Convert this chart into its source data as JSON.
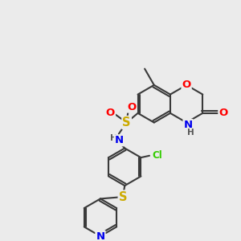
{
  "bg_color": "#ebebeb",
  "bond_color": "#3a3a3a",
  "bond_width": 1.5,
  "atom_colors": {
    "O": "#ff0000",
    "N": "#0000ee",
    "S": "#ccaa00",
    "Cl": "#33cc00",
    "C": "#3a3a3a",
    "H": "#555555"
  },
  "font_size": 8.5,
  "fig_size": [
    3.0,
    3.0
  ],
  "dpi": 100
}
